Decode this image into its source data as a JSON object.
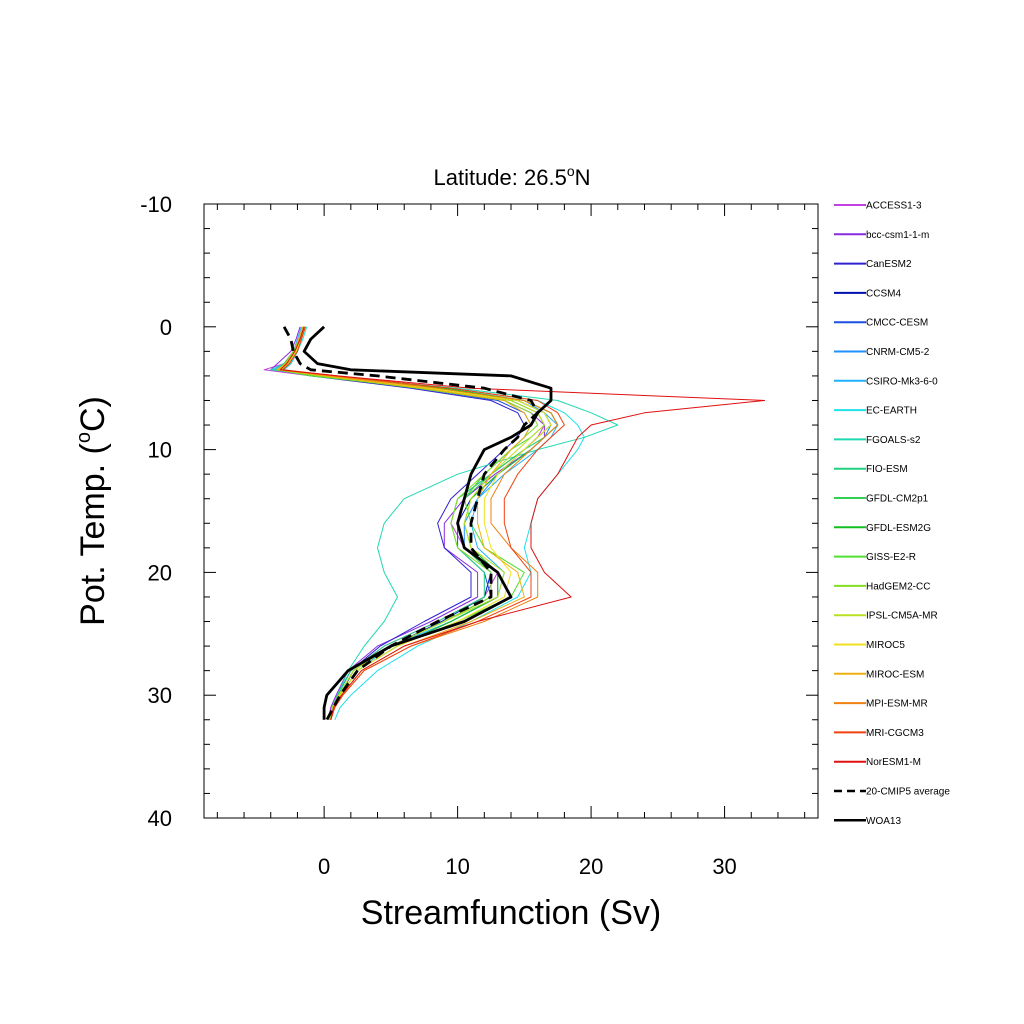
{
  "chart_data": {
    "type": "line",
    "title_main": "Latitude: 26.5",
    "title_sup": "o",
    "title_end": "N",
    "xlabel": "Streamfunction (Sv)",
    "ylabel_main": "Pot. Temp. (",
    "ylabel_sup": "o",
    "ylabel_end": "C)",
    "xlim": [
      -9,
      37
    ],
    "ylim": [
      -10,
      40
    ],
    "y_inverted": true,
    "x_ticks": [
      0,
      10,
      20,
      30
    ],
    "y_ticks": [
      -10,
      0,
      10,
      20,
      30,
      40
    ],
    "grid": false,
    "legend_position": "right",
    "y_grid": [
      0,
      1,
      2,
      3,
      3.5,
      4,
      5,
      6,
      7,
      8,
      9,
      10,
      12,
      14,
      16,
      18,
      20,
      22,
      24,
      26,
      28,
      30,
      31,
      32
    ],
    "series": [
      {
        "name": "ACCESS1-3",
        "color": "#c040e0",
        "style": "thin",
        "values": [
          -1.6,
          -1.9,
          -2.3,
          -3.0,
          -4.5,
          -1.0,
          8.0,
          14.0,
          16.0,
          16.5,
          16.0,
          15.0,
          12.5,
          10.0,
          9.5,
          10.5,
          13.0,
          12.0,
          8.5,
          4.5,
          2.0,
          1.0,
          0.6,
          0.4
        ]
      },
      {
        "name": "bcc-csm1-1-m",
        "color": "#8a2be2",
        "style": "thin",
        "values": [
          -1.8,
          -2.1,
          -2.5,
          -3.5,
          -4.0,
          -0.5,
          7.5,
          13.5,
          15.5,
          16.5,
          16.5,
          15.5,
          12.8,
          10.5,
          9.0,
          9.0,
          11.5,
          11.5,
          8.0,
          4.0,
          1.8,
          0.9,
          0.5,
          0.3
        ]
      },
      {
        "name": "CanESM2",
        "color": "#3020d0",
        "style": "thin",
        "values": [
          -1.4,
          -1.8,
          -2.0,
          -2.5,
          -3.0,
          -1.0,
          6.5,
          12.5,
          14.5,
          15.0,
          14.5,
          13.5,
          11.5,
          9.5,
          8.5,
          9.0,
          11.0,
          11.0,
          7.5,
          4.2,
          2.0,
          1.0,
          0.6,
          0.4
        ]
      },
      {
        "name": "CCSM4",
        "color": "#0010b0",
        "style": "thin",
        "values": [
          -1.5,
          -1.7,
          -2.0,
          -2.5,
          -3.2,
          -0.5,
          8.5,
          14.5,
          16.5,
          17.0,
          16.0,
          15.0,
          13.0,
          11.0,
          10.0,
          10.5,
          12.5,
          12.0,
          8.8,
          5.0,
          2.2,
          1.2,
          0.7,
          0.4
        ]
      },
      {
        "name": "CMCC-CESM",
        "color": "#1a50e0",
        "style": "thin",
        "values": [
          -1.6,
          -1.9,
          -2.2,
          -2.8,
          -3.5,
          0.0,
          7.0,
          13.0,
          15.0,
          15.5,
          15.0,
          14.0,
          12.0,
          10.5,
          10.0,
          10.0,
          12.0,
          12.5,
          9.0,
          5.0,
          2.2,
          1.1,
          0.6,
          0.4
        ]
      },
      {
        "name": "CNRM-CM5-2",
        "color": "#1e90ff",
        "style": "thin",
        "values": [
          -1.4,
          -1.7,
          -2.0,
          -2.6,
          -3.1,
          0.5,
          9.0,
          15.0,
          16.5,
          17.0,
          16.5,
          15.5,
          13.0,
          11.5,
          10.5,
          10.5,
          13.0,
          13.0,
          9.5,
          5.5,
          2.5,
          1.2,
          0.6,
          0.4
        ]
      },
      {
        "name": "CSIRO-Mk3-6-0",
        "color": "#20b0ff",
        "style": "thin",
        "values": [
          -1.7,
          -2.0,
          -2.3,
          -2.9,
          -3.8,
          -0.5,
          8.0,
          14.5,
          16.5,
          17.5,
          17.0,
          16.0,
          13.5,
          11.5,
          11.0,
          11.5,
          13.5,
          13.0,
          9.5,
          5.0,
          2.5,
          1.2,
          0.7,
          0.5
        ]
      },
      {
        "name": "EC-EARTH",
        "color": "#20e0e8",
        "style": "thin",
        "values": [
          -1.3,
          -1.6,
          -2.0,
          -2.5,
          -3.0,
          0.5,
          9.5,
          16.0,
          18.0,
          19.0,
          19.5,
          19.0,
          17.5,
          16.0,
          15.5,
          15.0,
          15.5,
          14.5,
          11.0,
          7.0,
          4.0,
          2.0,
          1.2,
          0.8
        ]
      },
      {
        "name": "FGOALS-s2",
        "color": "#20d8b0",
        "style": "thin",
        "values": [
          -1.5,
          -1.8,
          -2.2,
          -3.0,
          -4.0,
          0.0,
          10.0,
          17.5,
          20.0,
          22.0,
          19.5,
          16.0,
          10.0,
          6.0,
          4.5,
          4.0,
          4.5,
          5.5,
          4.5,
          3.0,
          1.8,
          1.0,
          0.6,
          0.4
        ]
      },
      {
        "name": "FIO-ESM",
        "color": "#20d080",
        "style": "thin",
        "values": [
          -1.4,
          -1.7,
          -2.1,
          -2.8,
          -3.6,
          0.0,
          8.5,
          15.0,
          17.0,
          17.5,
          16.5,
          15.0,
          12.5,
          10.0,
          9.5,
          10.0,
          12.0,
          12.0,
          8.5,
          4.5,
          2.0,
          1.0,
          0.6,
          0.4
        ]
      },
      {
        "name": "GFDL-CM2p1",
        "color": "#30d050",
        "style": "thin",
        "values": [
          -1.6,
          -1.9,
          -2.3,
          -3.0,
          -3.5,
          0.0,
          8.0,
          14.5,
          16.5,
          17.0,
          16.0,
          15.0,
          12.5,
          10.5,
          10.0,
          10.5,
          12.5,
          12.5,
          9.0,
          5.0,
          2.2,
          1.1,
          0.6,
          0.4
        ]
      },
      {
        "name": "GFDL-ESM2G",
        "color": "#10c020",
        "style": "thin",
        "values": [
          -1.5,
          -1.8,
          -2.2,
          -2.9,
          -3.4,
          0.0,
          9.0,
          15.0,
          17.0,
          17.5,
          16.5,
          15.5,
          13.0,
          11.0,
          10.5,
          11.0,
          13.0,
          13.0,
          9.5,
          5.5,
          2.5,
          1.2,
          0.7,
          0.5
        ]
      },
      {
        "name": "GISS-E2-R",
        "color": "#50e030",
        "style": "thin",
        "values": [
          -1.4,
          -1.8,
          -2.2,
          -2.8,
          -3.6,
          -1.0,
          7.5,
          14.0,
          16.0,
          16.5,
          15.5,
          14.0,
          12.0,
          10.5,
          11.0,
          12.0,
          15.0,
          14.0,
          10.0,
          5.5,
          2.5,
          1.2,
          0.7,
          0.5
        ]
      },
      {
        "name": "HadGEM2-CC",
        "color": "#80e020",
        "style": "thin",
        "values": [
          -1.6,
          -1.9,
          -2.3,
          -2.9,
          -3.5,
          -0.5,
          7.0,
          13.5,
          15.5,
          16.0,
          15.0,
          14.0,
          12.0,
          10.0,
          9.5,
          10.0,
          12.5,
          12.5,
          9.0,
          5.0,
          2.2,
          1.1,
          0.6,
          0.4
        ]
      },
      {
        "name": "IPSL-CM5A-MR",
        "color": "#b8e020",
        "style": "thin",
        "values": [
          -1.5,
          -1.8,
          -2.1,
          -2.7,
          -3.2,
          0.0,
          7.5,
          14.0,
          16.0,
          16.5,
          15.5,
          14.5,
          12.5,
          11.0,
          10.5,
          11.0,
          13.5,
          13.0,
          9.0,
          5.0,
          2.2,
          1.1,
          0.6,
          0.4
        ]
      },
      {
        "name": "MIROC5",
        "color": "#f0e020",
        "style": "thin",
        "values": [
          -1.4,
          -1.7,
          -2.1,
          -2.8,
          -3.4,
          0.5,
          8.0,
          14.5,
          16.5,
          17.0,
          16.0,
          15.0,
          13.0,
          12.0,
          12.0,
          12.5,
          14.0,
          13.5,
          10.0,
          5.5,
          2.5,
          1.2,
          0.7,
          0.5
        ]
      },
      {
        "name": "MIROC-ESM",
        "color": "#f0b010",
        "style": "thin",
        "values": [
          -1.6,
          -1.9,
          -2.2,
          -2.9,
          -3.5,
          0.0,
          7.5,
          13.5,
          15.0,
          15.5,
          15.0,
          14.0,
          12.5,
          11.5,
          11.5,
          12.0,
          14.5,
          15.0,
          11.0,
          6.0,
          2.8,
          1.3,
          0.7,
          0.5
        ]
      },
      {
        "name": "MPI-ESM-MR",
        "color": "#f08010",
        "style": "thin",
        "values": [
          -1.5,
          -1.8,
          -2.2,
          -2.8,
          -3.3,
          0.5,
          8.5,
          15.0,
          17.0,
          17.5,
          16.5,
          15.5,
          13.5,
          12.5,
          12.5,
          14.0,
          16.0,
          16.0,
          12.0,
          6.5,
          3.0,
          1.4,
          0.8,
          0.5
        ]
      },
      {
        "name": "MRI-CGCM3",
        "color": "#f04010",
        "style": "thin",
        "values": [
          -1.4,
          -1.7,
          -2.0,
          -2.6,
          -3.1,
          1.0,
          9.5,
          16.0,
          17.5,
          18.0,
          17.0,
          16.0,
          14.5,
          13.5,
          13.5,
          14.0,
          15.5,
          15.5,
          11.5,
          6.5,
          3.0,
          1.4,
          0.8,
          0.5
        ]
      },
      {
        "name": "NorESM1-M",
        "color": "#e01010",
        "style": "thin",
        "values": [
          -1.5,
          -1.8,
          -2.2,
          -2.8,
          -3.3,
          1.0,
          11.0,
          33.0,
          24.0,
          20.0,
          19.0,
          18.5,
          17.5,
          16.0,
          15.5,
          15.5,
          16.5,
          18.5,
          11.5,
          6.0,
          2.8,
          1.3,
          0.7,
          0.5
        ]
      },
      {
        "name": "20-CMIP5 average",
        "color": "#000000",
        "style": "dashed",
        "values": [
          -3.0,
          -2.5,
          -2.3,
          -1.8,
          -1.0,
          4.0,
          12.0,
          15.5,
          16.0,
          15.0,
          14.5,
          13.5,
          12.0,
          11.5,
          11.0,
          11.0,
          12.5,
          12.5,
          8.5,
          5.0,
          2.5,
          1.2,
          0.7,
          0.2
        ]
      },
      {
        "name": "WOA13",
        "color": "#000000",
        "style": "thick",
        "values": [
          0.0,
          -1.0,
          -1.5,
          -0.5,
          2.0,
          14.0,
          17.0,
          17.0,
          16.0,
          15.5,
          14.0,
          12.0,
          11.0,
          10.5,
          10.0,
          10.5,
          13.0,
          14.0,
          10.5,
          5.0,
          1.8,
          0.2,
          0.0,
          0.0
        ]
      }
    ]
  }
}
